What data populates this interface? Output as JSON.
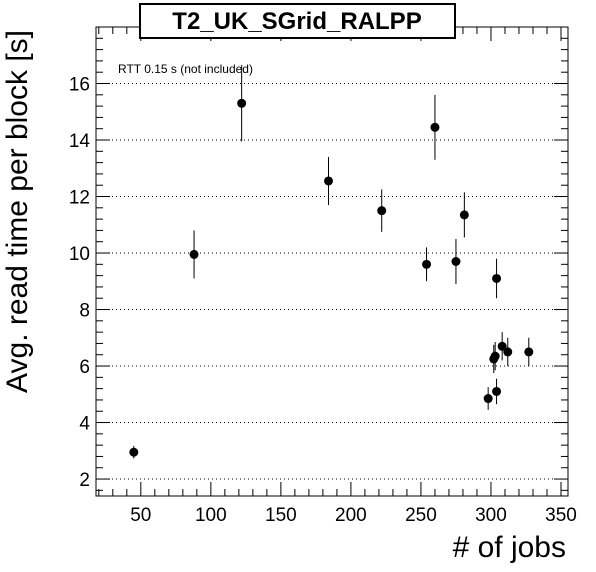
{
  "chart_data": {
    "type": "scatter",
    "title": "T2_UK_SGrid_RALPP",
    "xlabel": "# of jobs",
    "ylabel": "Avg. read time per block [s]",
    "annotation": "RTT 0.15 s (not included)",
    "xlim": [
      18,
      355
    ],
    "ylim": [
      1.4,
      18
    ],
    "x_ticks": [
      50,
      100,
      150,
      200,
      250,
      300,
      350
    ],
    "y_ticks": [
      2,
      4,
      6,
      8,
      10,
      12,
      14,
      16
    ],
    "grid": "horizontal-dotted",
    "points": [
      {
        "x": 45,
        "y": 2.95,
        "err": 0.22
      },
      {
        "x": 88,
        "y": 9.95,
        "err": 0.85
      },
      {
        "x": 122,
        "y": 15.3,
        "err": 1.35
      },
      {
        "x": 184,
        "y": 12.55,
        "err": 0.85
      },
      {
        "x": 222,
        "y": 11.5,
        "err": 0.75
      },
      {
        "x": 254,
        "y": 9.6,
        "err": 0.6
      },
      {
        "x": 260,
        "y": 14.45,
        "err": 1.15
      },
      {
        "x": 275,
        "y": 9.7,
        "err": 0.8
      },
      {
        "x": 281,
        "y": 11.35,
        "err": 0.8
      },
      {
        "x": 298,
        "y": 4.85,
        "err": 0.4
      },
      {
        "x": 302,
        "y": 6.25,
        "err": 0.5
      },
      {
        "x": 303,
        "y": 6.35,
        "err": 0.5
      },
      {
        "x": 304,
        "y": 5.1,
        "err": 0.45
      },
      {
        "x": 304,
        "y": 9.1,
        "err": 0.7
      },
      {
        "x": 308,
        "y": 6.7,
        "err": 0.5
      },
      {
        "x": 312,
        "y": 6.5,
        "err": 0.5
      },
      {
        "x": 327,
        "y": 6.5,
        "err": 0.5
      }
    ]
  }
}
